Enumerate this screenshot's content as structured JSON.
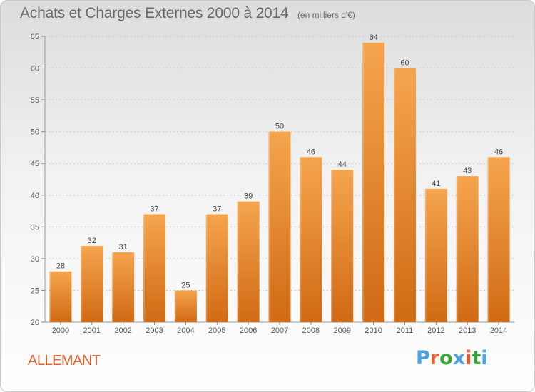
{
  "chart_data": {
    "type": "bar",
    "title": "Achats et Charges Externes 2000 à 2014",
    "subtitle": "(en milliers d'€)",
    "categories": [
      "2000",
      "2001",
      "2002",
      "2003",
      "2004",
      "2005",
      "2006",
      "2007",
      "2008",
      "2009",
      "2010",
      "2011",
      "2012",
      "2013",
      "2014"
    ],
    "values": [
      28,
      32,
      31,
      37,
      25,
      37,
      39,
      50,
      46,
      44,
      64,
      60,
      41,
      43,
      46
    ],
    "ylim": [
      20,
      65
    ],
    "yticks": [
      20,
      25,
      30,
      35,
      40,
      45,
      50,
      55,
      60,
      65
    ],
    "grid": true,
    "bar_color_top": "#f5a54e",
    "bar_color_bottom": "#d06a14"
  },
  "footer": {
    "commune": "ALLEMANT",
    "logo_text": "Proxiti",
    "logo_colors": [
      "#4aa3df",
      "#e2612f",
      "#3aa33a",
      "#4aa3df",
      "#e2612f",
      "#3aa33a",
      "#4aa3df"
    ]
  }
}
